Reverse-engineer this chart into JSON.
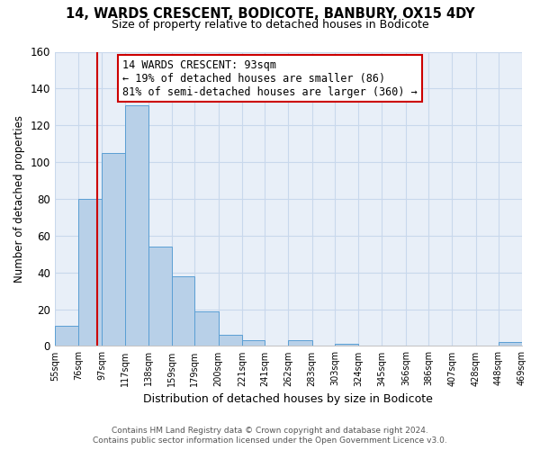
{
  "title": "14, WARDS CRESCENT, BODICOTE, BANBURY, OX15 4DY",
  "subtitle": "Size of property relative to detached houses in Bodicote",
  "xlabel": "Distribution of detached houses by size in Bodicote",
  "ylabel": "Number of detached properties",
  "bin_edges": [
    55,
    76,
    97,
    117,
    138,
    159,
    179,
    200,
    221,
    241,
    262,
    283,
    303,
    324,
    345,
    366,
    386,
    407,
    428,
    448,
    469
  ],
  "bin_heights": [
    11,
    80,
    105,
    131,
    54,
    38,
    19,
    6,
    3,
    0,
    3,
    0,
    1,
    0,
    0,
    0,
    0,
    0,
    0,
    2
  ],
  "bar_color": "#b8d0e8",
  "bar_edge_color": "#5a9fd4",
  "vline_x": 93,
  "vline_color": "#cc0000",
  "ylim": [
    0,
    160
  ],
  "yticks": [
    0,
    20,
    40,
    60,
    80,
    100,
    120,
    140,
    160
  ],
  "annotation_title": "14 WARDS CRESCENT: 93sqm",
  "annotation_line1": "← 19% of detached houses are smaller (86)",
  "annotation_line2": "81% of semi-detached houses are larger (360) →",
  "annotation_box_color": "#ffffff",
  "annotation_box_edge_color": "#cc0000",
  "footer_line1": "Contains HM Land Registry data © Crown copyright and database right 2024.",
  "footer_line2": "Contains public sector information licensed under the Open Government Licence v3.0.",
  "bg_color": "#ffffff",
  "grid_color": "#c8d8ec",
  "tick_labels": [
    "55sqm",
    "76sqm",
    "97sqm",
    "117sqm",
    "138sqm",
    "159sqm",
    "179sqm",
    "200sqm",
    "221sqm",
    "241sqm",
    "262sqm",
    "283sqm",
    "303sqm",
    "324sqm",
    "345sqm",
    "366sqm",
    "386sqm",
    "407sqm",
    "428sqm",
    "448sqm",
    "469sqm"
  ]
}
